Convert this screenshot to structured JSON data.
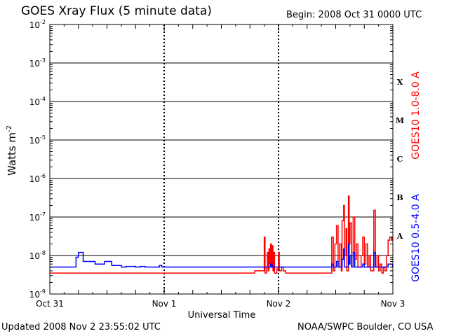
{
  "header": {
    "title": "GOES Xray Flux (5 minute data)",
    "begin": "Begin:  2008 Oct 31 0000 UTC"
  },
  "footer": {
    "updated": "Updated 2008 Nov  2 23:55:02 UTC",
    "credit": "NOAA/SWPC Boulder, CO USA"
  },
  "chart_data": {
    "type": "line",
    "title": "GOES Xray Flux (5 minute data)",
    "xlabel": "Universal Time",
    "ylabel": "Watts m-2",
    "yscale": "log",
    "ylim": [
      1e-09,
      0.01
    ],
    "grid": "horizontal at each decade",
    "x_ticks": [
      "Oct 31",
      "Nov 1",
      "Nov 2",
      "Nov 3"
    ],
    "y_ticks": [
      {
        "mantissa": "10",
        "exp": "-9",
        "value": 1e-09
      },
      {
        "mantissa": "10",
        "exp": "-8",
        "value": 1e-08
      },
      {
        "mantissa": "10",
        "exp": "-7",
        "value": 1e-07
      },
      {
        "mantissa": "10",
        "exp": "-6",
        "value": 1e-06
      },
      {
        "mantissa": "10",
        "exp": "-5",
        "value": 1e-05
      },
      {
        "mantissa": "10",
        "exp": "-4",
        "value": 0.0001
      },
      {
        "mantissa": "10",
        "exp": "-3",
        "value": 0.001
      },
      {
        "mantissa": "10",
        "exp": "-2",
        "value": 0.01
      }
    ],
    "flare_classes": [
      {
        "label": "A",
        "value": 3.2e-08
      },
      {
        "label": "B",
        "value": 3.2e-07
      },
      {
        "label": "C",
        "value": 3.2e-06
      },
      {
        "label": "M",
        "value": 3.2e-05
      },
      {
        "label": "X",
        "value": 0.00032
      }
    ],
    "series": [
      {
        "name": "GOES10 1.0-8.0 A",
        "color": "#ff0000",
        "points": [
          [
            "2008-10-31 00:00",
            3.5e-09
          ],
          [
            "2008-10-31 12:00",
            3.5e-09
          ],
          [
            "2008-11-01 12:00",
            3.5e-09
          ],
          [
            "2008-11-01 19:00",
            4e-09
          ],
          [
            "2008-11-01 20:50",
            4e-09
          ],
          [
            "2008-11-01 21:00",
            3e-08
          ],
          [
            "2008-11-01 21:10",
            3.5e-09
          ],
          [
            "2008-11-01 21:30",
            5e-09
          ],
          [
            "2008-11-01 21:40",
            1.2e-08
          ],
          [
            "2008-11-01 21:50",
            4e-09
          ],
          [
            "2008-11-01 22:00",
            1.5e-08
          ],
          [
            "2008-11-01 22:10",
            6e-09
          ],
          [
            "2008-11-01 22:20",
            2e-08
          ],
          [
            "2008-11-01 22:30",
            5e-09
          ],
          [
            "2008-11-01 22:40",
            1.8e-08
          ],
          [
            "2008-11-01 22:50",
            4e-09
          ],
          [
            "2008-11-01 23:00",
            1.2e-08
          ],
          [
            "2008-11-01 23:10",
            3.5e-09
          ],
          [
            "2008-11-01 23:30",
            3.5e-09
          ],
          [
            "2008-11-01 23:40",
            4.5e-09
          ],
          [
            "2008-11-02 00:00",
            1.2e-08
          ],
          [
            "2008-11-02 00:10",
            4e-09
          ],
          [
            "2008-11-02 00:30",
            4e-09
          ],
          [
            "2008-11-02 00:40",
            5e-09
          ],
          [
            "2008-11-02 01:00",
            4e-09
          ],
          [
            "2008-11-02 01:30",
            3.5e-09
          ],
          [
            "2008-11-02 09:00",
            3.5e-09
          ],
          [
            "2008-11-02 11:00",
            3.5e-09
          ],
          [
            "2008-11-02 11:10",
            3e-08
          ],
          [
            "2008-11-02 11:30",
            4e-09
          ],
          [
            "2008-11-02 11:50",
            2e-08
          ],
          [
            "2008-11-02 12:10",
            6e-08
          ],
          [
            "2008-11-02 12:30",
            5e-09
          ],
          [
            "2008-11-02 12:50",
            2e-08
          ],
          [
            "2008-11-02 13:10",
            4e-09
          ],
          [
            "2008-11-02 13:20",
            8e-08
          ],
          [
            "2008-11-02 13:40",
            2e-07
          ],
          [
            "2008-11-02 13:50",
            1e-08
          ],
          [
            "2008-11-02 14:10",
            5e-08
          ],
          [
            "2008-11-02 14:20",
            4e-09
          ],
          [
            "2008-11-02 14:40",
            3.5e-07
          ],
          [
            "2008-11-02 14:50",
            2e-08
          ],
          [
            "2008-11-02 15:00",
            7e-08
          ],
          [
            "2008-11-02 15:20",
            5e-09
          ],
          [
            "2008-11-02 15:40",
            1e-07
          ],
          [
            "2008-11-02 16:00",
            8e-09
          ],
          [
            "2008-11-02 16:20",
            2e-08
          ],
          [
            "2008-11-02 16:40",
            5e-09
          ],
          [
            "2008-11-02 17:20",
            1e-08
          ],
          [
            "2008-11-02 17:40",
            3e-08
          ],
          [
            "2008-11-02 18:00",
            6e-09
          ],
          [
            "2008-11-02 18:20",
            2e-08
          ],
          [
            "2008-11-02 18:40",
            5e-09
          ],
          [
            "2008-11-02 19:00",
            1e-08
          ],
          [
            "2008-11-02 19:20",
            4e-09
          ],
          [
            "2008-11-02 20:00",
            1.5e-07
          ],
          [
            "2008-11-02 20:20",
            5e-09
          ],
          [
            "2008-11-02 20:40",
            1e-08
          ],
          [
            "2008-11-02 21:00",
            4e-09
          ],
          [
            "2008-11-02 21:20",
            6e-09
          ],
          [
            "2008-11-02 21:40",
            3.5e-09
          ],
          [
            "2008-11-02 22:00",
            5e-09
          ],
          [
            "2008-11-02 22:20",
            4e-09
          ],
          [
            "2008-11-02 22:40",
            1e-08
          ],
          [
            "2008-11-02 23:00",
            2.5e-08
          ],
          [
            "2008-11-02 23:20",
            3e-08
          ],
          [
            "2008-11-02 23:40",
            2.5e-08
          ],
          [
            "2008-11-02 23:55",
            3e-08
          ]
        ]
      },
      {
        "name": "GOES10 0.5-4.0 A",
        "color": "#0000ff",
        "points": [
          [
            "2008-10-31 00:00",
            5e-09
          ],
          [
            "2008-10-31 05:00",
            5e-09
          ],
          [
            "2008-10-31 05:30",
            9e-09
          ],
          [
            "2008-10-31 06:00",
            1.2e-08
          ],
          [
            "2008-10-31 07:00",
            7e-09
          ],
          [
            "2008-10-31 09:00",
            7e-09
          ],
          [
            "2008-10-31 09:30",
            6e-09
          ],
          [
            "2008-10-31 11:00",
            6e-09
          ],
          [
            "2008-10-31 11:30",
            7e-09
          ],
          [
            "2008-10-31 12:30",
            7e-09
          ],
          [
            "2008-10-31 13:00",
            5.5e-09
          ],
          [
            "2008-10-31 15:00",
            5e-09
          ],
          [
            "2008-10-31 16:00",
            5.2e-09
          ],
          [
            "2008-10-31 18:00",
            5e-09
          ],
          [
            "2008-10-31 19:00",
            5.2e-09
          ],
          [
            "2008-10-31 20:00",
            5e-09
          ],
          [
            "2008-10-31 23:00",
            5.5e-09
          ],
          [
            "2008-10-31 23:30",
            5e-09
          ],
          [
            "2008-11-01 21:30",
            5e-09
          ],
          [
            "2008-11-01 22:20",
            6e-09
          ],
          [
            "2008-11-01 22:40",
            5e-09
          ],
          [
            "2008-11-02 11:00",
            5e-09
          ],
          [
            "2008-11-02 11:10",
            6e-09
          ],
          [
            "2008-11-02 11:30",
            5e-09
          ],
          [
            "2008-11-02 12:10",
            7e-09
          ],
          [
            "2008-11-02 12:30",
            5e-09
          ],
          [
            "2008-11-02 13:20",
            8e-09
          ],
          [
            "2008-11-02 13:40",
            1.5e-08
          ],
          [
            "2008-11-02 13:50",
            5e-09
          ],
          [
            "2008-11-02 14:40",
            2e-08
          ],
          [
            "2008-11-02 14:50",
            6e-09
          ],
          [
            "2008-11-02 15:00",
            1e-08
          ],
          [
            "2008-11-02 15:20",
            5e-09
          ],
          [
            "2008-11-02 15:40",
            1.2e-08
          ],
          [
            "2008-11-02 16:00",
            5e-09
          ],
          [
            "2008-11-02 17:40",
            6e-09
          ],
          [
            "2008-11-02 18:00",
            5e-09
          ],
          [
            "2008-11-02 20:00",
            1.2e-08
          ],
          [
            "2008-11-02 20:20",
            5e-09
          ],
          [
            "2008-11-02 22:40",
            5e-09
          ],
          [
            "2008-11-02 23:00",
            6e-09
          ],
          [
            "2008-11-02 23:55",
            5e-09
          ]
        ]
      }
    ]
  }
}
